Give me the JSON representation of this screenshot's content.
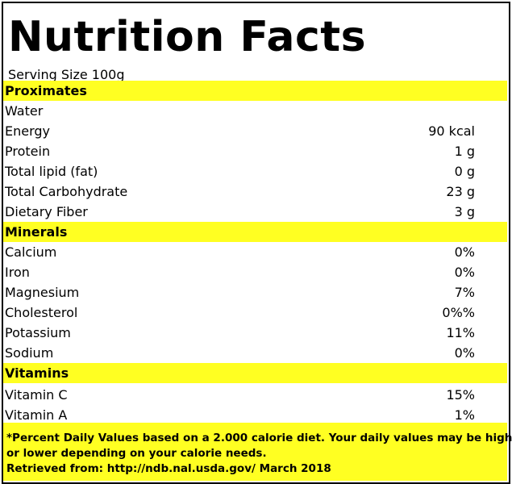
{
  "title": "Nutrition Facts",
  "serving": "Serving Size 100g",
  "sections": [
    {
      "name": "Proximates",
      "rows": [
        {
          "label": "Water",
          "value": ""
        },
        {
          "label": "Energy",
          "value": "90 kcal"
        },
        {
          "label": "Protein",
          "value": "1 g"
        },
        {
          "label": "Total lipid (fat)",
          "value": "0 g"
        },
        {
          "label": "Total Carbohydrate",
          "value": "23 g"
        },
        {
          "label": "Dietary Fiber",
          "value": "3 g"
        }
      ]
    },
    {
      "name": "Minerals",
      "rows": [
        {
          "label": "Calcium",
          "value": "0%"
        },
        {
          "label": "Iron",
          "value": "0%"
        },
        {
          "label": "Magnesium",
          "value": "7%"
        },
        {
          "label": "Cholesterol",
          "value": "0%%"
        },
        {
          "label": "Potassium",
          "value": "11%"
        },
        {
          "label": "Sodium",
          "value": "0%"
        }
      ]
    },
    {
      "name": "Vitamins",
      "rows": [
        {
          "label": "Vitamin C",
          "value": "15%"
        },
        {
          "label": "Vitamin A",
          "value": "1%"
        }
      ]
    }
  ],
  "footer": {
    "line1": "*Percent Daily Values based on a 2.000 calorie diet. Your daily values may be higher",
    "line2": "or lower depending on your calorie needs.",
    "line3": "Retrieved from: http://ndb.nal.usda.gov/ March 2018"
  },
  "colors": {
    "highlight": "#ffff22",
    "border": "#000000"
  }
}
